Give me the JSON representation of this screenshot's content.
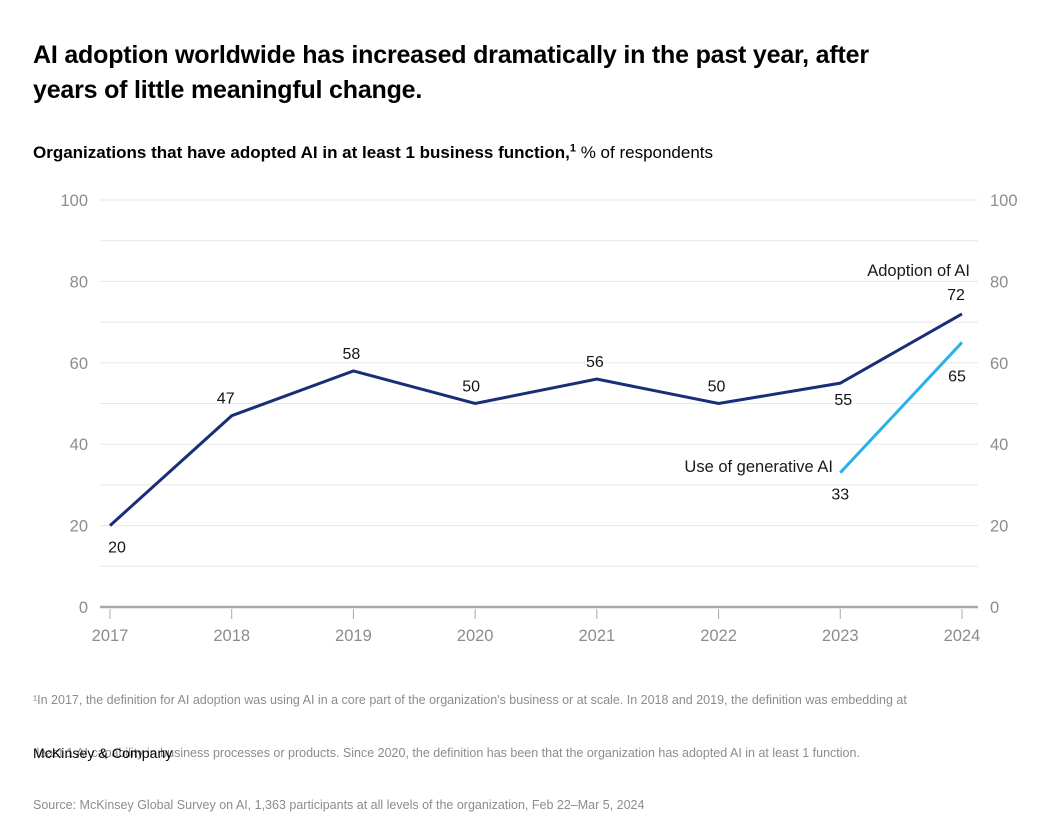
{
  "page": {
    "title_lines": [
      "AI adoption worldwide has increased dramatically in the past year, after",
      "years of little meaningful change."
    ],
    "subtitle_bold": "Organizations that have adopted AI in at least 1 business function,",
    "subtitle_sup": "1",
    "subtitle_rest": " % of respondents",
    "footnote_lines": [
      "¹In 2017, the definition for AI adoption was using AI in a core part of the organization's business or at scale. In 2018 and 2019, the definition was embedding at",
      " least 1 AI capability in business processes or products. Since 2020, the definition has been that the organization has adopted AI in at least 1 function.",
      "Source: McKinsey Global Survey on AI, 1,363 participants at all levels of the organization, Feb 22–Mar 5, 2024"
    ],
    "logo": "McKinsey & Company"
  },
  "chart_data": {
    "type": "line",
    "title": "Organizations that have adopted AI in at least 1 business function, % of respondents",
    "x": [
      2017,
      2018,
      2019,
      2020,
      2021,
      2022,
      2023,
      2024
    ],
    "series": [
      {
        "name": "Adoption of AI",
        "color": "#1a2e78",
        "values": [
          20,
          47,
          58,
          50,
          56,
          50,
          55,
          72
        ]
      },
      {
        "name": "Use of generative AI",
        "color": "#29b2e8",
        "values": [
          null,
          null,
          null,
          null,
          null,
          null,
          33,
          65
        ]
      }
    ],
    "ylim": [
      0,
      100
    ],
    "yticks": [
      0,
      20,
      40,
      60,
      80,
      100
    ],
    "grid_step": 10,
    "grid_on": true,
    "legend_position": "inline-labels-right",
    "dual_y_axis_labels": true,
    "grid_color": "#e7e7e7",
    "axis_color": "#a9a9a9",
    "tick_label_color": "#8c8c8c",
    "data_label_color": "#141414"
  }
}
